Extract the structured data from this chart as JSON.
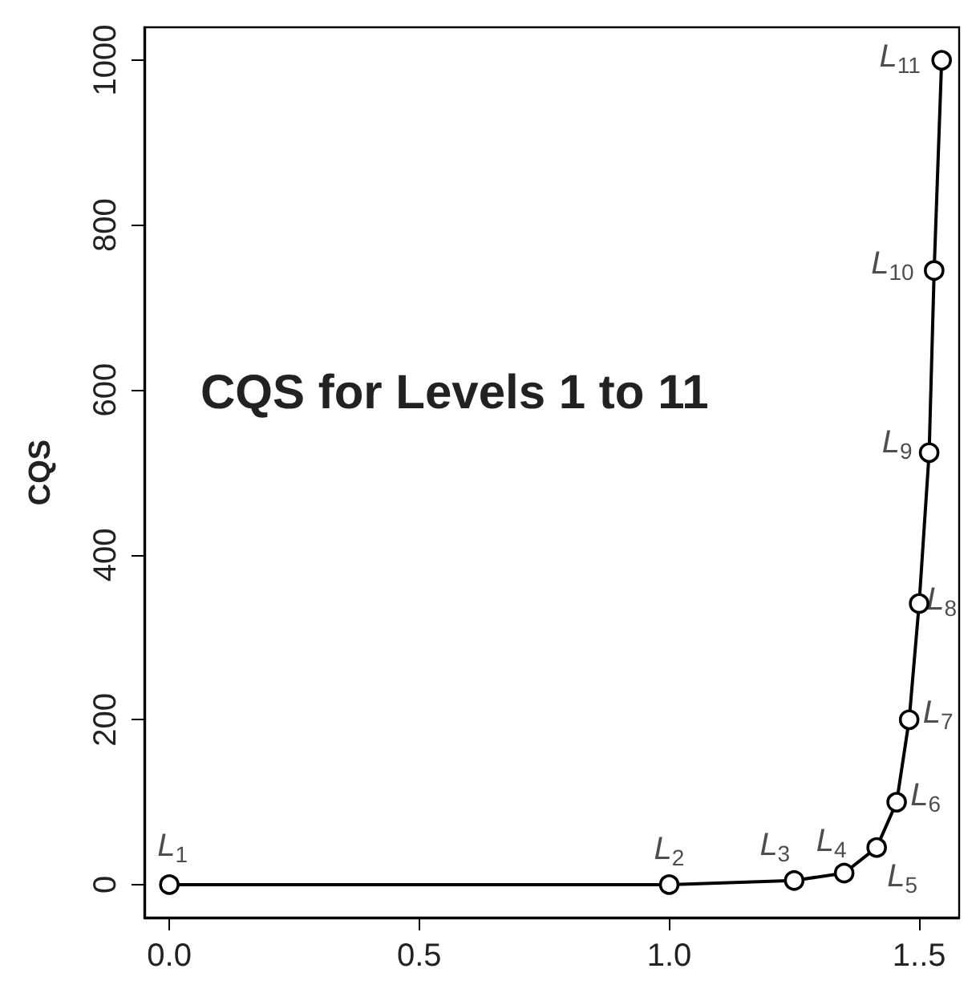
{
  "chart_data": {
    "type": "line",
    "title": "CQS for Levels 1 to 11",
    "ylabel": "CQS",
    "x": [
      0,
      1.0,
      1.25,
      1.35,
      1.415,
      1.455,
      1.48,
      1.5,
      1.52,
      1.53,
      1.545
    ],
    "series": [
      {
        "color": "#000000",
        "values": [
          0,
          0,
          5,
          14,
          45,
          100,
          200,
          341,
          524,
          745,
          1000
        ]
      }
    ],
    "annotations": [
      {
        "text": "L$_{1}$",
        "x": 0,
        "y": 0
      },
      {
        "text": "L$_{2}$",
        "x": 1.0,
        "y": 0
      },
      {
        "text": "L$_{3}$",
        "x": 1.25,
        "y": 5
      },
      {
        "text": "L$_{4}$",
        "x": 1.35,
        "y": 14
      },
      {
        "text": "L$_{5}$",
        "x": 1.415,
        "y": 45
      },
      {
        "text": "L$_{6}$",
        "x": 1.455,
        "y": 100
      },
      {
        "text": "L$_{7}$",
        "x": 1.48,
        "y": 200
      },
      {
        "text": "L$_{8}$",
        "x": 1.5,
        "y": 341
      },
      {
        "text": "L$_{9}$",
        "x": 1.52,
        "y": 524
      },
      {
        "text": "L$_{10}$",
        "x": 1.53,
        "y": 745
      },
      {
        "text": "L$_{11}$",
        "x": 1.545,
        "y": 1000
      }
    ],
    "xlim": [
      -0.05,
      1.58
    ],
    "xticks": [
      {
        "value": 0,
        "label": "0.0"
      },
      0.5,
      {
        "value": 1,
        "label": "1.0"
      },
      {
        "value": 1.5,
        "label": "1..5"
      }
    ],
    "ylim": [
      -40,
      1040
    ],
    "yticks": [
      0,
      200,
      400,
      600,
      800,
      1000
    ],
    "grid": false,
    "marker": "circle",
    "line_style": "solid"
  }
}
